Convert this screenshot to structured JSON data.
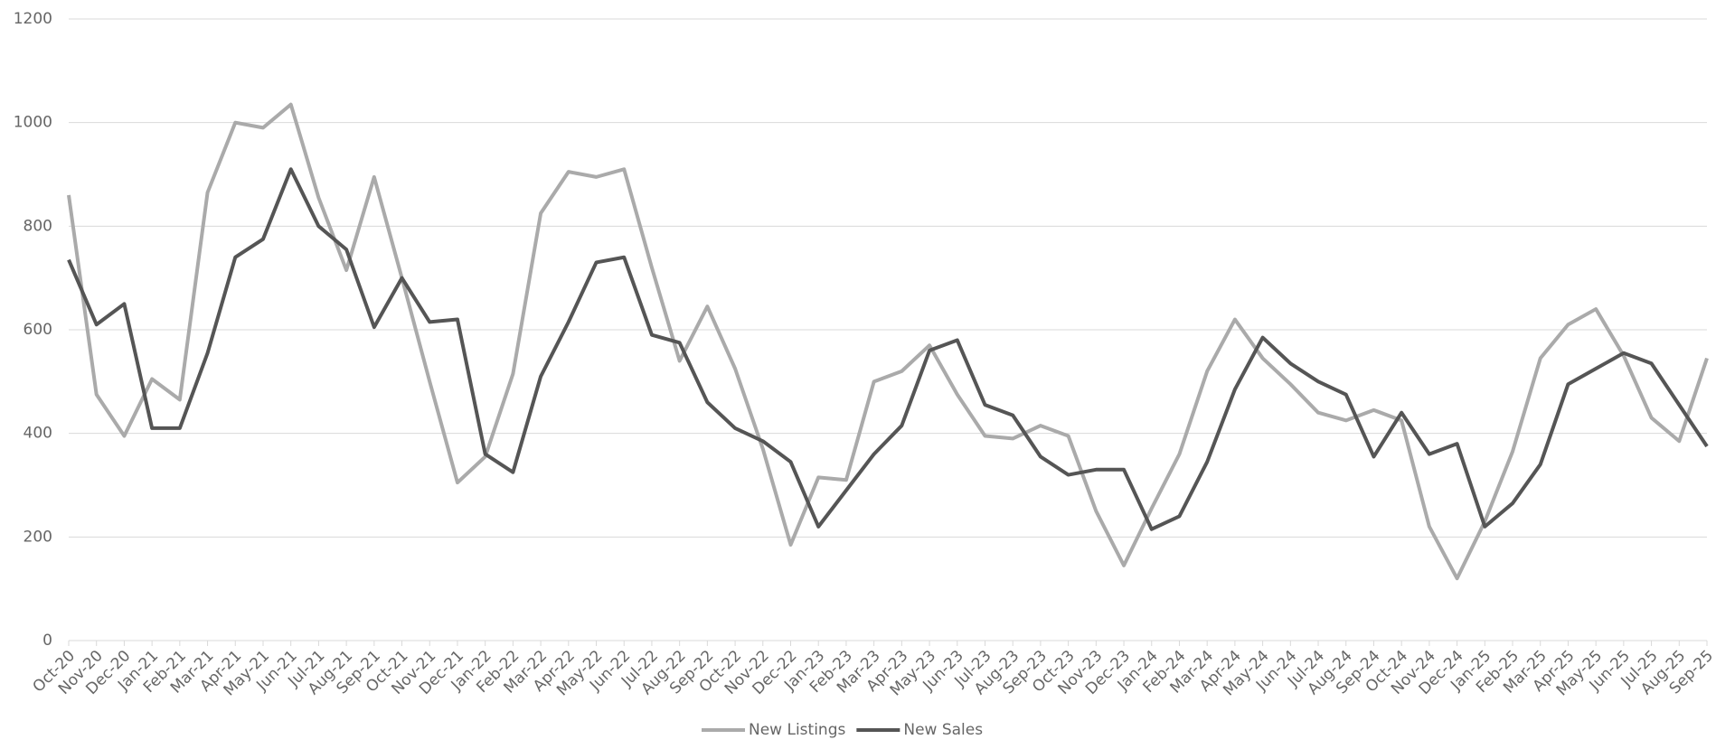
{
  "chart_data": {
    "type": "line",
    "categories": [
      "Oct-20",
      "Nov-20",
      "Dec-20",
      "Jan-21",
      "Feb-21",
      "Mar-21",
      "Apr-21",
      "May-21",
      "Jun-21",
      "Jul-21",
      "Aug-21",
      "Sep-21",
      "Oct-21",
      "Nov-21",
      "Dec-21",
      "Jan-22",
      "Feb-22",
      "Mar-22",
      "Apr-22",
      "May-22",
      "Jun-22",
      "Jul-22",
      "Aug-22",
      "Sep-22",
      "Oct-22",
      "Nov-22",
      "Dec-22",
      "Jan-23",
      "Feb-23",
      "Mar-23",
      "Apr-23",
      "May-23",
      "Jun-23",
      "Jul-23",
      "Aug-23",
      "Sep-23",
      "Oct-23",
      "Nov-23",
      "Dec-23",
      "Jan-24",
      "Feb-24",
      "Mar-24",
      "Apr-24",
      "May-24",
      "Jun-24",
      "Jul-24",
      "Aug-24",
      "Sep-24",
      "Oct-24",
      "Nov-24",
      "Dec-24",
      "Jan-25",
      "Feb-25",
      "Mar-25",
      "Apr-25",
      "May-25",
      "Jun-25",
      "Jul-25",
      "Aug-25",
      "Sep-25"
    ],
    "series": [
      {
        "name": "New Listings",
        "color": "#aaaaaa",
        "values": [
          860,
          475,
          395,
          505,
          465,
          865,
          1000,
          990,
          1035,
          855,
          715,
          895,
          700,
          500,
          305,
          355,
          515,
          825,
          905,
          895,
          910,
          720,
          540,
          645,
          525,
          370,
          185,
          315,
          310,
          500,
          520,
          570,
          475,
          395,
          390,
          415,
          395,
          250,
          145,
          255,
          360,
          520,
          620,
          545,
          495,
          440,
          425,
          445,
          425,
          220,
          120,
          230,
          365,
          545,
          610,
          640,
          550,
          430,
          385,
          545
        ]
      },
      {
        "name": "New Sales",
        "color": "#555555",
        "values": [
          735,
          610,
          650,
          410,
          410,
          555,
          740,
          775,
          910,
          800,
          755,
          605,
          700,
          615,
          620,
          360,
          325,
          510,
          615,
          730,
          740,
          590,
          575,
          460,
          410,
          385,
          345,
          220,
          290,
          360,
          415,
          560,
          580,
          455,
          435,
          355,
          320,
          330,
          330,
          215,
          240,
          345,
          485,
          585,
          535,
          500,
          475,
          355,
          440,
          360,
          380,
          220,
          265,
          340,
          495,
          525,
          555,
          535,
          455,
          375
        ]
      }
    ],
    "ylim": [
      0,
      1200
    ],
    "yticks": [
      0,
      200,
      400,
      600,
      800,
      1000,
      1200
    ],
    "grid": true,
    "legend": "bottom"
  }
}
